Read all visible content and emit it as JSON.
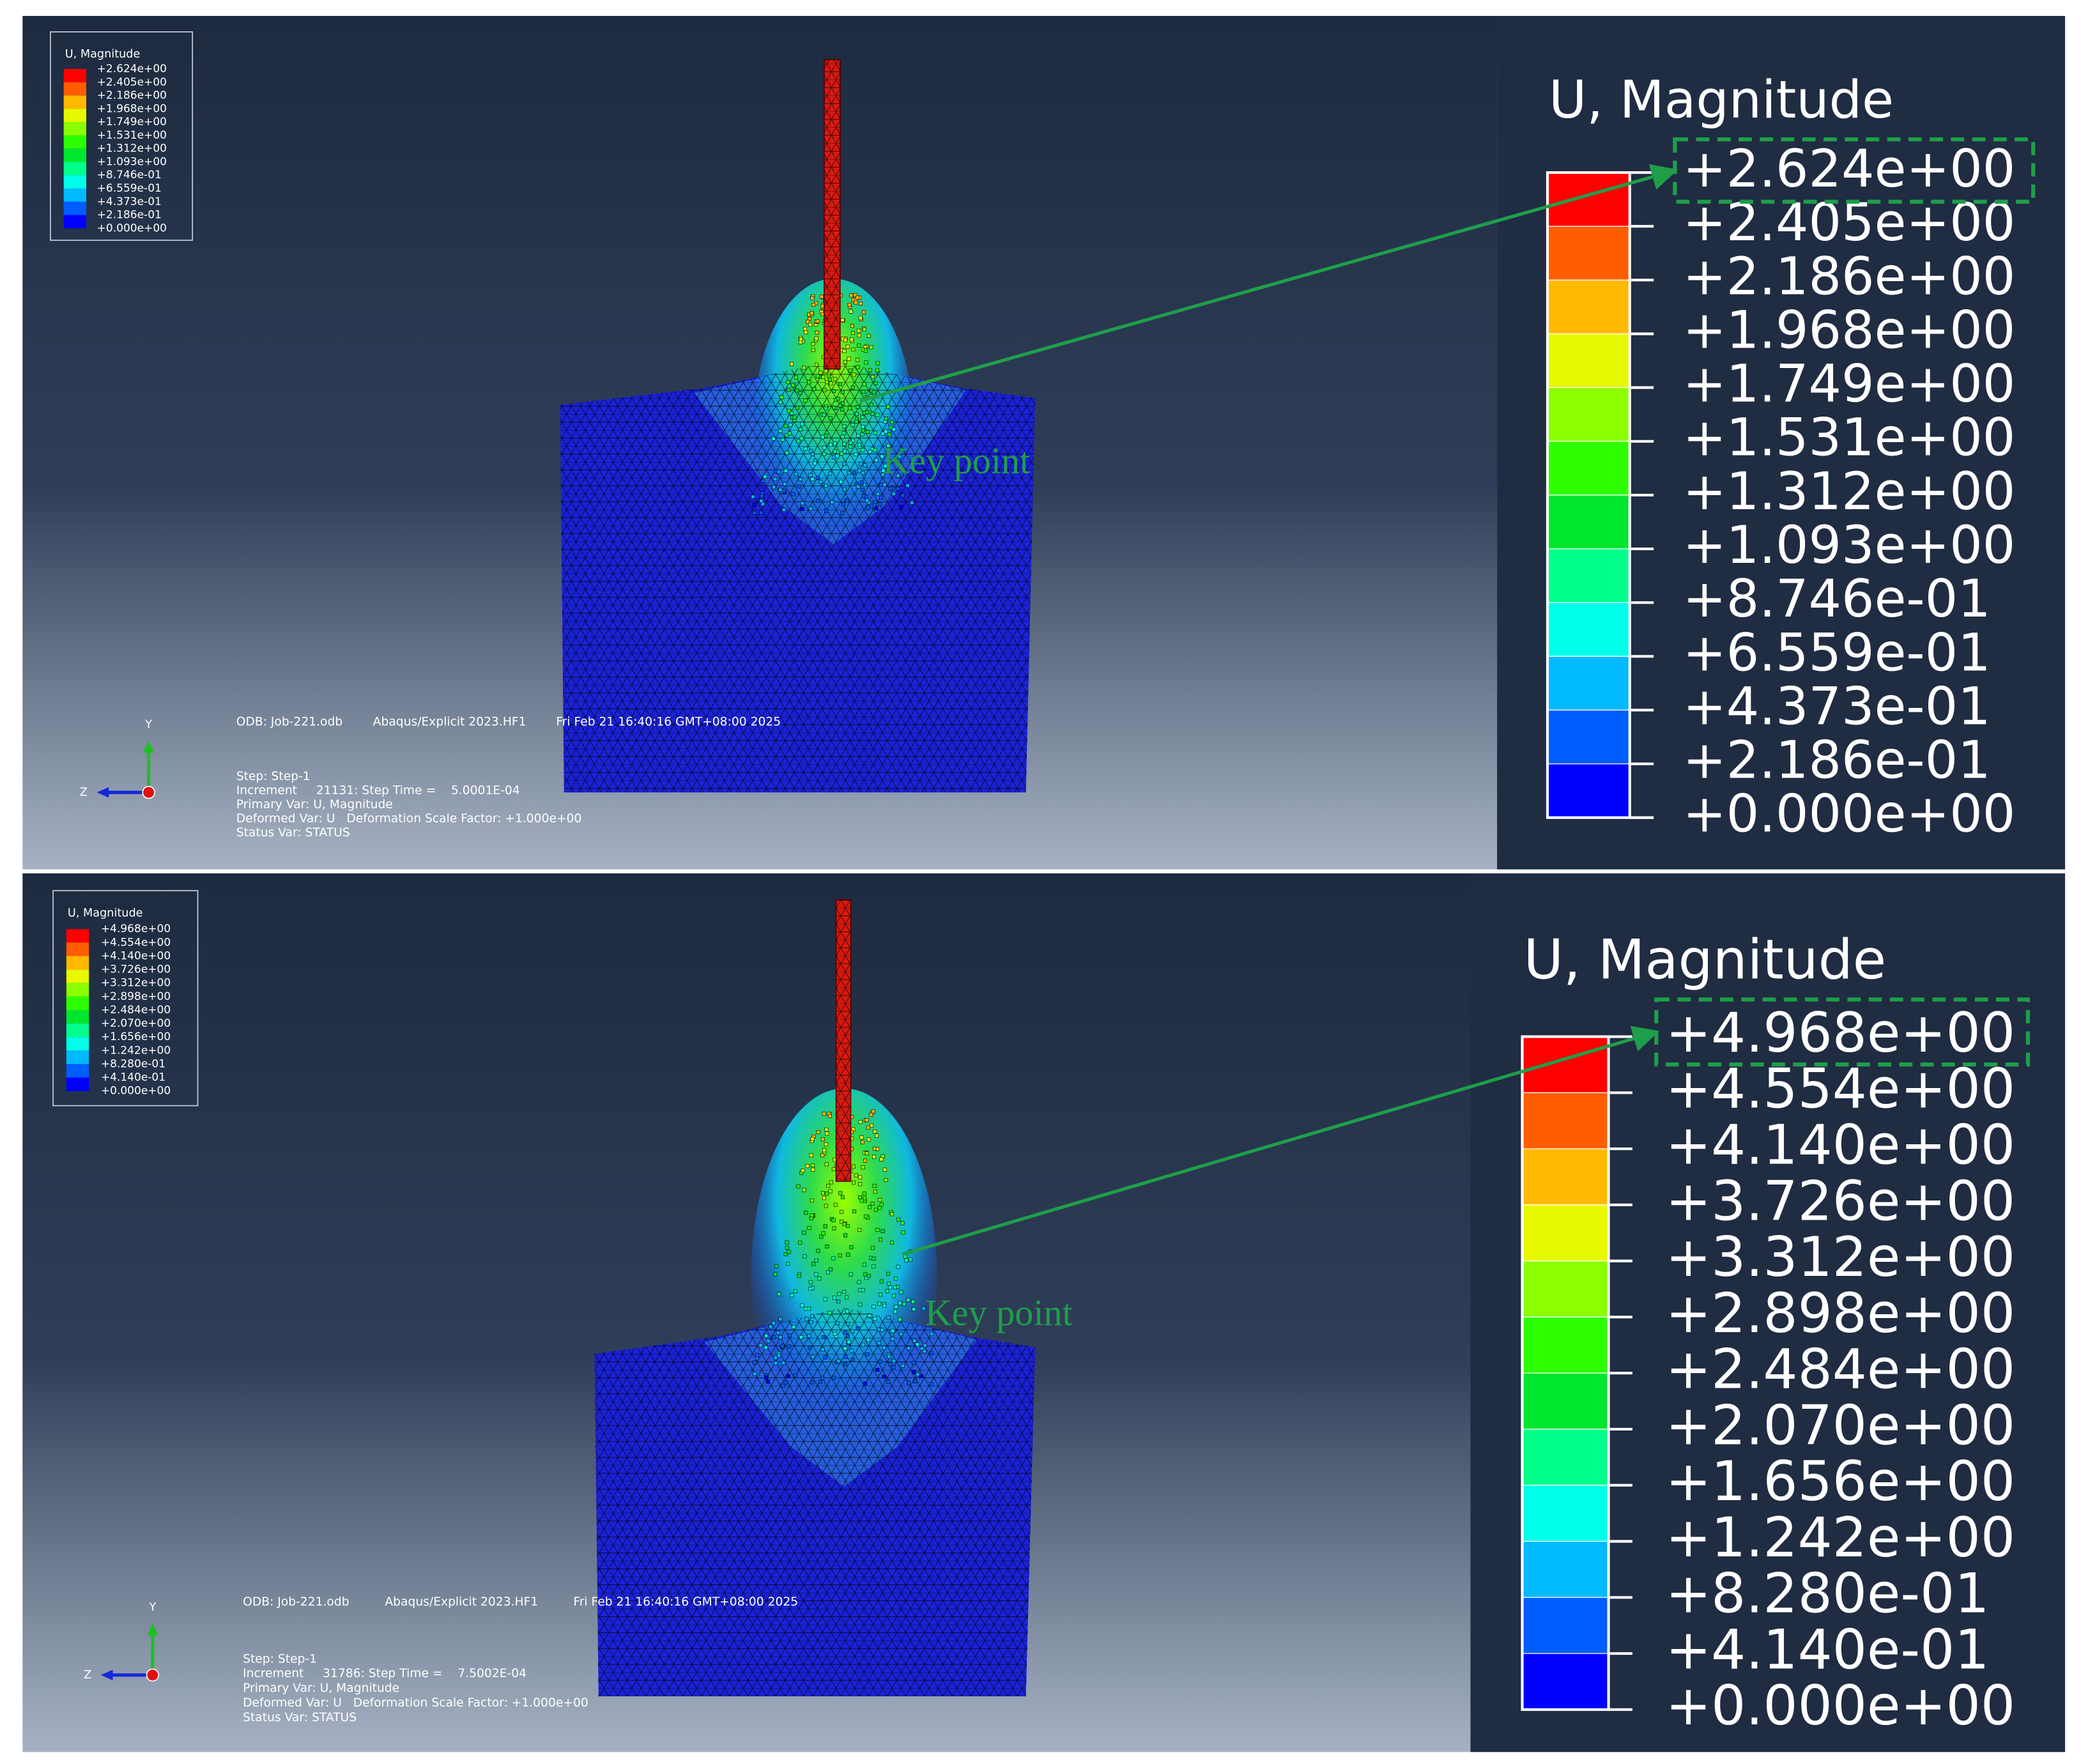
{
  "legend_colors": [
    "#ff0000",
    "#ff5d00",
    "#ffb900",
    "#e8f800",
    "#8bff00",
    "#2eff00",
    "#00e62e",
    "#00ff8b",
    "#00ffe8",
    "#00b9ff",
    "#005dff",
    "#0000ff"
  ],
  "panels": [
    {
      "legend": {
        "title": "U, Magnitude",
        "values": [
          "+2.624e+00",
          "+2.405e+00",
          "+2.186e+00",
          "+1.968e+00",
          "+1.749e+00",
          "+1.531e+00",
          "+1.312e+00",
          "+1.093e+00",
          "+8.746e-01",
          "+6.559e-01",
          "+4.373e-01",
          "+2.186e-01",
          "+0.000e+00"
        ]
      },
      "info": {
        "odb": "ODB: Job-221.odb",
        "solver": "Abaqus/Explicit 2023.HF1",
        "date": "Fri Feb 21 16:40:16 GMT+08:00 2025",
        "lines": [
          "Step: Step-1",
          "Increment     21131: Step Time =    5.0001E-04",
          "Primary Var: U, Magnitude",
          "Deformed Var: U   Deformation Scale Factor: +1.000e+00",
          "Status Var: STATUS"
        ]
      },
      "triad": {
        "y": "Y",
        "z": "Z"
      },
      "annotation": "Key point"
    },
    {
      "legend": {
        "title": "U, Magnitude",
        "values": [
          "+4.968e+00",
          "+4.554e+00",
          "+4.140e+00",
          "+3.726e+00",
          "+3.312e+00",
          "+2.898e+00",
          "+2.484e+00",
          "+2.070e+00",
          "+1.656e+00",
          "+1.242e+00",
          "+8.280e-01",
          "+4.140e-01",
          "+0.000e+00"
        ]
      },
      "info": {
        "odb": "ODB: Job-221.odb",
        "solver": "Abaqus/Explicit 2023.HF1",
        "date": "Fri Feb 21 16:40:16 GMT+08:00 2025",
        "lines": [
          "Step: Step-1",
          "Increment     31786: Step Time =    7.5002E-04",
          "Primary Var: U, Magnitude",
          "Deformed Var: U   Deformation Scale Factor: +1.000e+00",
          "Status Var: STATUS"
        ]
      },
      "triad": {
        "y": "Y",
        "z": "Z"
      },
      "annotation": "Key point"
    }
  ]
}
